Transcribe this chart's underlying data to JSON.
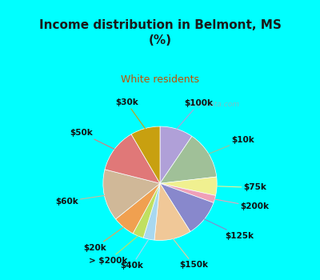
{
  "title": "Income distribution in Belmont, MS\n(%)",
  "subtitle": "White residents",
  "title_color": "#1a1a1a",
  "subtitle_color": "#c05000",
  "background_cyan": "#00ffff",
  "labels": [
    "$100k",
    "$10k",
    "$75k",
    "$200k",
    "$125k",
    "$150k",
    "$40k",
    "> $200k",
    "$20k",
    "$60k",
    "$50k",
    "$30k"
  ],
  "values": [
    9,
    13,
    5,
    2,
    10,
    10,
    3,
    3,
    6,
    14,
    12,
    8
  ],
  "colors": [
    "#b0a0d8",
    "#a0c098",
    "#f0f090",
    "#f0a0b8",
    "#8888cc",
    "#f0c898",
    "#a8d8f0",
    "#c0e060",
    "#f0a050",
    "#d0b898",
    "#e07878",
    "#c8a010"
  ],
  "watermark": "City-Data.com",
  "startangle": 90,
  "title_fontsize": 11,
  "subtitle_fontsize": 9,
  "label_fontsize": 7.5
}
